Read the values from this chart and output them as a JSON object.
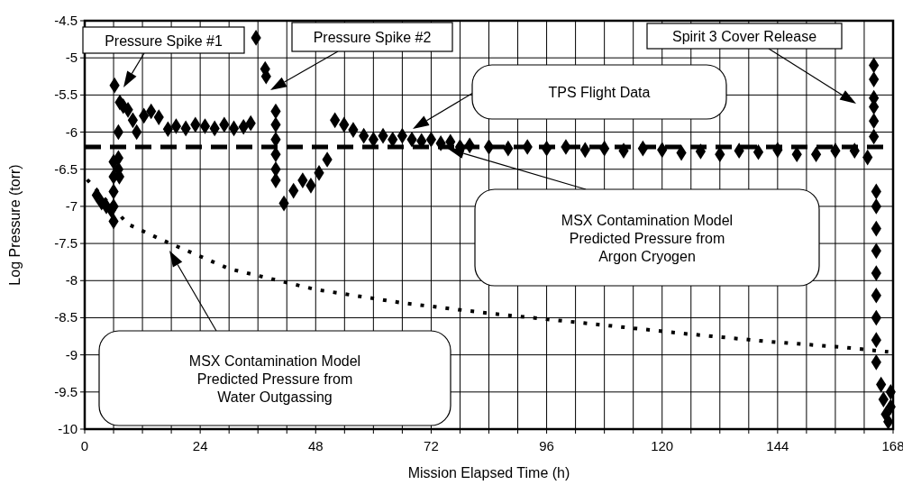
{
  "chart_data": {
    "type": "scatter",
    "xlabel": "Mission Elapsed Time (h)",
    "ylabel": "Log Pressure (torr)",
    "xlim": [
      0,
      168
    ],
    "ylim": [
      -10,
      -4.5
    ],
    "xticks": [
      0,
      {
        "value": 6,
        "label": null
      },
      {
        "value": 12,
        "label": null
      },
      {
        "value": 18,
        "label": null
      },
      24,
      {
        "value": 30,
        "label": null
      },
      {
        "value": 36,
        "label": null
      },
      {
        "value": 42,
        "label": null
      },
      48,
      {
        "value": 54,
        "label": null
      },
      {
        "value": 60,
        "label": null
      },
      {
        "value": 66,
        "label": null
      },
      72,
      {
        "value": 78,
        "label": null
      },
      {
        "value": 84,
        "label": null
      },
      {
        "value": 90,
        "label": null
      },
      96,
      {
        "value": 102,
        "label": null
      },
      {
        "value": 108,
        "label": null
      },
      {
        "value": 114,
        "label": null
      },
      120,
      {
        "value": 126,
        "label": null
      },
      {
        "value": 132,
        "label": null
      },
      {
        "value": 138,
        "label": null
      },
      144,
      {
        "value": 150,
        "label": null
      },
      {
        "value": 156,
        "label": null
      },
      {
        "value": 162,
        "label": null
      },
      168
    ],
    "yticks": [
      -10,
      -9.5,
      -9,
      -8.5,
      -8,
      -7.5,
      -7,
      -6.5,
      -6,
      -5.5,
      -5,
      -4.5
    ],
    "grid": true,
    "series": [
      {
        "marker": "diamond",
        "color": "#000000",
        "x": [
          2.5,
          3.5,
          4.5,
          5.5,
          6,
          6,
          6,
          6,
          6,
          6.2,
          7,
          7,
          7.2,
          7,
          7.3,
          8,
          9,
          10,
          10.8,
          12.3,
          13.8,
          15.4,
          17.3,
          19,
          21,
          23,
          25,
          27,
          29,
          31,
          33,
          34.5,
          35.6,
          37.5,
          37.7,
          39.7,
          39.7,
          39.7,
          39.7,
          39.7,
          39.7,
          41.4,
          43.4,
          45.3,
          47,
          48.7,
          50.4,
          52,
          53.9,
          55.8,
          58,
          60,
          62,
          64,
          66,
          68,
          70,
          72,
          74,
          76,
          78,
          80,
          84,
          88,
          92,
          96,
          100,
          104,
          108,
          112,
          116,
          120,
          124,
          128,
          132,
          136,
          140,
          144,
          148,
          152,
          156,
          160,
          162.7,
          164,
          164,
          164,
          164,
          164,
          164,
          164.5,
          164.5,
          164.5,
          164.5,
          164.5,
          164.5,
          164.5,
          164.5,
          164.5,
          165.5,
          166,
          166.5,
          167,
          167.5,
          167.5
        ],
        "values": [
          -6.85,
          -6.95,
          -7.0,
          -7.05,
          -7.2,
          -7.0,
          -6.8,
          -6.6,
          -6.4,
          -5.37,
          -6.35,
          -6.5,
          -6.6,
          -6.0,
          -5.6,
          -5.65,
          -5.7,
          -5.84,
          -6.0,
          -5.78,
          -5.72,
          -5.8,
          -5.96,
          -5.92,
          -5.95,
          -5.9,
          -5.92,
          -5.95,
          -5.9,
          -5.95,
          -5.93,
          -5.88,
          -4.73,
          -5.15,
          -5.25,
          -5.72,
          -5.9,
          -6.1,
          -6.3,
          -6.5,
          -6.65,
          -6.96,
          -6.79,
          -6.65,
          -6.72,
          -6.55,
          -6.37,
          -5.84,
          -5.9,
          -5.97,
          -6.05,
          -6.1,
          -6.05,
          -6.1,
          -6.05,
          -6.1,
          -6.12,
          -6.1,
          -6.15,
          -6.13,
          -6.2,
          -6.18,
          -6.2,
          -6.22,
          -6.2,
          -6.22,
          -6.2,
          -6.24,
          -6.22,
          -6.25,
          -6.22,
          -6.24,
          -6.28,
          -6.26,
          -6.3,
          -6.25,
          -6.27,
          -6.24,
          -6.3,
          -6.3,
          -6.25,
          -6.25,
          -6.34,
          -6.06,
          -5.85,
          -5.66,
          -5.54,
          -5.29,
          -5.1,
          -6.8,
          -7.0,
          -7.3,
          -7.6,
          -7.9,
          -8.2,
          -8.5,
          -8.8,
          -9.1,
          -9.4,
          -9.6,
          -9.8,
          -9.9,
          -9.7,
          -9.5
        ]
      },
      {
        "type": "line",
        "line_style": "dashed",
        "color": "#000000",
        "x": [
          0,
          168
        ],
        "values": [
          -6.2,
          -6.2
        ]
      },
      {
        "type": "line",
        "line_style": "dotted",
        "color": "#000000",
        "x": [
          0.5,
          9,
          12,
          16,
          30,
          48,
          66,
          84,
          108,
          124,
          142,
          158,
          167
        ],
        "values": [
          -6.64,
          -7.24,
          -7.33,
          -7.45,
          -7.84,
          -8.12,
          -8.3,
          -8.44,
          -8.6,
          -8.71,
          -8.82,
          -8.9,
          -8.96
        ]
      }
    ],
    "annotations": [
      "Pressure Spike #1",
      "Pressure Spike #2",
      "TPS Flight Data",
      "MSX Contamination Model Predicted Pressure from Argon Cryogen",
      "MSX Contamination Model Predicted Pressure from Water Outgassing",
      "Spirit 3 Cover Release"
    ]
  }
}
